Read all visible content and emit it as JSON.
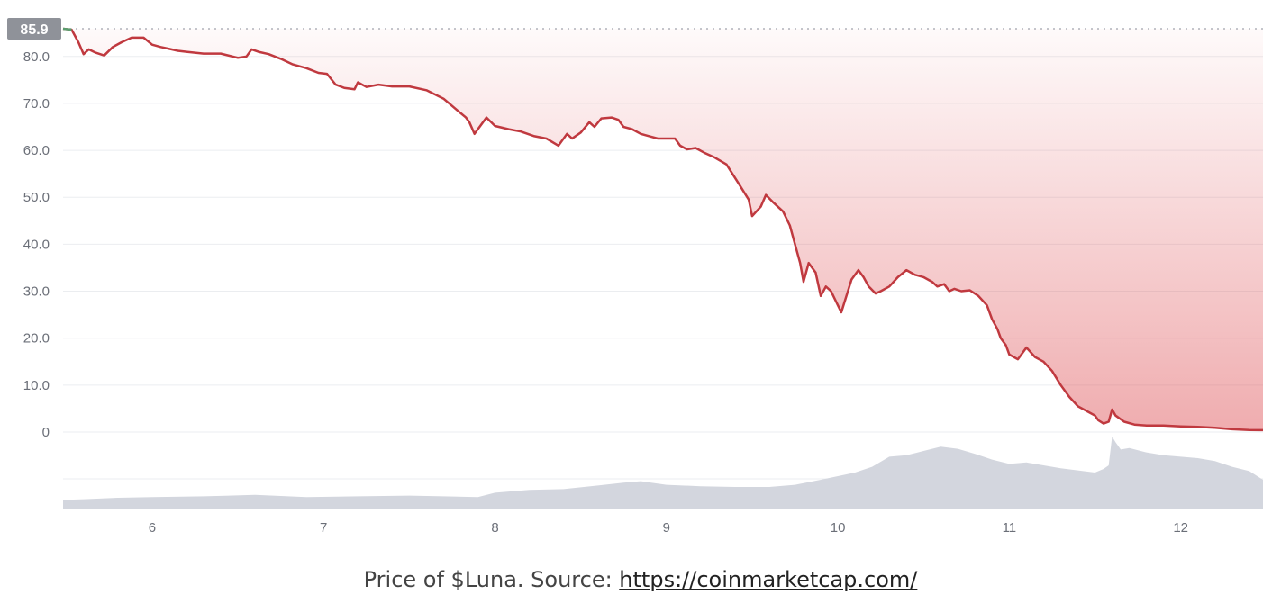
{
  "caption": {
    "text": "Price of $Luna. Source: ",
    "link": "https://coinmarketcap.com/"
  },
  "chart_data": {
    "type": "area",
    "title": "",
    "xlabel": "",
    "ylabel": "",
    "current_value_label": "85.9",
    "y_ticks": [
      "80.0",
      "70.0",
      "60.0",
      "50.0",
      "40.0",
      "30.0",
      "20.0",
      "10.0",
      "0"
    ],
    "y_tick_values": [
      80,
      70,
      60,
      50,
      40,
      30,
      20,
      10,
      0
    ],
    "x_ticks": [
      "6",
      "7",
      "8",
      "9",
      "10",
      "11",
      "12"
    ],
    "x_tick_values": [
      6,
      7,
      8,
      9,
      10,
      11,
      12
    ],
    "xlim": [
      5.48,
      12.48
    ],
    "ylim": [
      0,
      85.9
    ],
    "grid": true,
    "colors": {
      "price_line": "#c0393f",
      "fill": "#e05a5f",
      "volume": "#d3d6de",
      "start_line": "#5a9e6f",
      "label_bg": "#8f9299"
    },
    "series": [
      {
        "values_kind": "price",
        "x": [
          5.48,
          5.53,
          5.57,
          5.6,
          5.63,
          5.67,
          5.72,
          5.77,
          5.82,
          5.88,
          5.95,
          6.0,
          6.05,
          6.1,
          6.15,
          6.2,
          6.3,
          6.4,
          6.5,
          6.55,
          6.58,
          6.62,
          6.68,
          6.75,
          6.82,
          6.9,
          6.97,
          7.02,
          7.07,
          7.12,
          7.18,
          7.2,
          7.25,
          7.32,
          7.4,
          7.5,
          7.6,
          7.7,
          7.78,
          7.83,
          7.85,
          7.88,
          7.95,
          8.0,
          8.08,
          8.15,
          8.23,
          8.3,
          8.37,
          8.42,
          8.45,
          8.5,
          8.55,
          8.58,
          8.62,
          8.68,
          8.72,
          8.75,
          8.8,
          8.85,
          8.9,
          8.95,
          9.0,
          9.05,
          9.08,
          9.12,
          9.17,
          9.22,
          9.28,
          9.35,
          9.42,
          9.48,
          9.5,
          9.55,
          9.58,
          9.62,
          9.68,
          9.72,
          9.75,
          9.78,
          9.8,
          9.83,
          9.87,
          9.9,
          9.93,
          9.96,
          10.0,
          10.02,
          10.05,
          10.08,
          10.12,
          10.15,
          10.18,
          10.22,
          10.25,
          10.3,
          10.35,
          10.4,
          10.45,
          10.5,
          10.55,
          10.58,
          10.62,
          10.65,
          10.68,
          10.72,
          10.77,
          10.82,
          10.87,
          10.9,
          10.93,
          10.95,
          10.98,
          11.0,
          11.05,
          11.1,
          11.15,
          11.2,
          11.25,
          11.3,
          11.35,
          11.4,
          11.45,
          11.5,
          11.52,
          11.55,
          11.58,
          11.6,
          11.62,
          11.67,
          11.73,
          11.8,
          11.9,
          12.0,
          12.1,
          12.2,
          12.3,
          12.4,
          12.48
        ],
        "y": [
          85.9,
          85.7,
          83.0,
          80.5,
          81.5,
          80.8,
          80.2,
          82.0,
          83.0,
          84.0,
          84.0,
          82.5,
          82.0,
          81.6,
          81.2,
          81.0,
          80.6,
          80.6,
          79.7,
          80.0,
          81.5,
          81.0,
          80.5,
          79.5,
          78.3,
          77.5,
          76.5,
          76.3,
          74.0,
          73.3,
          73.0,
          74.5,
          73.5,
          74.0,
          73.6,
          73.6,
          72.8,
          71.0,
          68.5,
          67.0,
          66.0,
          63.5,
          67.0,
          65.2,
          64.5,
          64.0,
          63.0,
          62.5,
          61.0,
          63.5,
          62.5,
          63.8,
          66.0,
          65.0,
          66.8,
          67.0,
          66.5,
          65.0,
          64.5,
          63.5,
          63.0,
          62.5,
          62.5,
          62.5,
          61.0,
          60.2,
          60.5,
          59.5,
          58.5,
          57.0,
          53.0,
          49.5,
          46.0,
          48.0,
          50.5,
          49.0,
          47.0,
          44.0,
          40.0,
          36.0,
          32.0,
          36.0,
          34.0,
          29.0,
          31.0,
          30.0,
          27.0,
          25.5,
          29.0,
          32.5,
          34.5,
          33.0,
          31.0,
          29.5,
          30.0,
          31.0,
          33.0,
          34.5,
          33.5,
          33.0,
          32.0,
          31.0,
          31.5,
          30.0,
          30.5,
          30.0,
          30.2,
          29.0,
          27.0,
          24.0,
          22.0,
          20.0,
          18.5,
          16.5,
          15.5,
          18.0,
          16.0,
          15.0,
          13.0,
          10.0,
          7.5,
          5.5,
          4.5,
          3.5,
          2.5,
          1.8,
          2.2,
          4.8,
          3.5,
          2.2,
          1.6,
          1.4,
          1.4,
          1.2,
          1.1,
          0.9,
          0.6,
          0.45,
          0.4
        ]
      },
      {
        "values_kind": "volume",
        "x": [
          5.48,
          5.6,
          5.8,
          6.0,
          6.3,
          6.6,
          6.9,
          7.2,
          7.5,
          7.7,
          7.9,
          8.0,
          8.2,
          8.4,
          8.6,
          8.75,
          8.85,
          9.0,
          9.2,
          9.4,
          9.6,
          9.75,
          9.9,
          10.0,
          10.1,
          10.2,
          10.3,
          10.4,
          10.5,
          10.6,
          10.7,
          10.8,
          10.9,
          11.0,
          11.1,
          11.2,
          11.3,
          11.4,
          11.5,
          11.55,
          11.58,
          11.6,
          11.62,
          11.65,
          11.7,
          11.8,
          11.9,
          12.0,
          12.1,
          12.2,
          12.3,
          12.4,
          12.48
        ],
        "y": [
          0.12,
          0.13,
          0.15,
          0.16,
          0.17,
          0.19,
          0.16,
          0.17,
          0.18,
          0.17,
          0.16,
          0.22,
          0.26,
          0.27,
          0.32,
          0.36,
          0.38,
          0.33,
          0.31,
          0.3,
          0.3,
          0.33,
          0.4,
          0.45,
          0.5,
          0.58,
          0.72,
          0.74,
          0.8,
          0.86,
          0.83,
          0.76,
          0.68,
          0.62,
          0.64,
          0.6,
          0.56,
          0.53,
          0.5,
          0.55,
          0.6,
          1.0,
          0.92,
          0.82,
          0.84,
          0.78,
          0.74,
          0.72,
          0.7,
          0.66,
          0.58,
          0.52,
          0.4
        ]
      }
    ]
  }
}
